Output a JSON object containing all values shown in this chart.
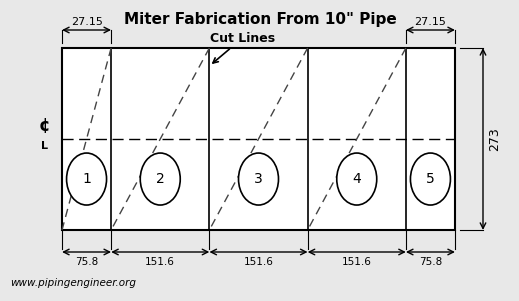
{
  "title": "Miter Fabrication From 10\" Pipe",
  "website": "www.pipingengineer.org",
  "cut_lines_label": "Cut Lines",
  "dim_top_left": "27.15",
  "dim_top_right": "27.15",
  "dim_right": "273",
  "dim_bottom": [
    "75.8",
    "151.6",
    "151.6",
    "151.6",
    "75.8"
  ],
  "section_labels": [
    "1",
    "2",
    "3",
    "4",
    "5"
  ],
  "widths": [
    75.8,
    151.6,
    151.6,
    151.6,
    75.8
  ],
  "bg_color": "#e8e8e8",
  "line_color": "#000000",
  "dash_color": "#444444"
}
